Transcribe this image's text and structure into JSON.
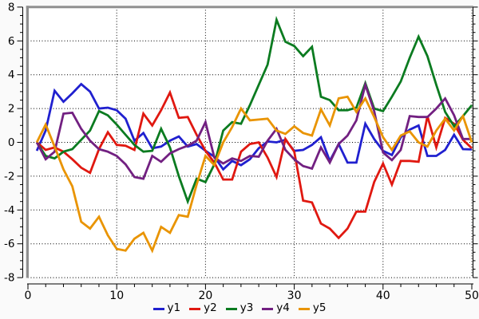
{
  "chart_data": {
    "type": "line",
    "title": "",
    "xlabel": "",
    "ylabel": "",
    "xlim": [
      0,
      50
    ],
    "ylim": [
      -8,
      8
    ],
    "grid": true,
    "grid_style": "dotted",
    "legend_position": "bottom-center",
    "x_major_ticks": [
      0,
      10,
      20,
      30,
      40,
      50
    ],
    "x_tick_labels": [
      "0",
      "10",
      "20",
      "30",
      "40",
      "50"
    ],
    "x_minor_step": 2,
    "y_major_ticks": [
      -8,
      -6,
      -4,
      -2,
      0,
      2,
      4,
      6,
      8
    ],
    "y_tick_labels": [
      "-8",
      "-6",
      "-4",
      "-2",
      "0",
      "2",
      "4",
      "6",
      "8"
    ],
    "y_minor_step": 0.5,
    "x": [
      1,
      2,
      3,
      4,
      5,
      6,
      7,
      8,
      9,
      10,
      11,
      12,
      13,
      14,
      15,
      16,
      17,
      18,
      19,
      20,
      21,
      22,
      23,
      24,
      25,
      26,
      27,
      28,
      29,
      30,
      31,
      32,
      33,
      34,
      35,
      36,
      37,
      38,
      39,
      40,
      41,
      42,
      43,
      44,
      45,
      46,
      47,
      48,
      49,
      50
    ],
    "series": [
      {
        "name": "y1",
        "color": "#2020cf",
        "values": [
          -0.5,
          0.7,
          3.05,
          2.4,
          2.9,
          3.45,
          3.0,
          2.0,
          2.05,
          1.9,
          1.4,
          0.1,
          0.55,
          -0.35,
          -0.25,
          0.1,
          0.35,
          -0.25,
          -0.1,
          -0.5,
          -0.85,
          -1.6,
          -1.1,
          -1.35,
          -1.0,
          -0.35,
          0.05,
          0.0,
          0.15,
          -0.5,
          -0.45,
          -0.15,
          0.3,
          -1.1,
          -0.1,
          -1.2,
          -1.2,
          1.1,
          0.2,
          -0.5,
          -0.75,
          0.3,
          0.75,
          1.0,
          -0.8,
          -0.8,
          -0.45,
          0.45,
          -0.4,
          -0.42
        ]
      },
      {
        "name": "y2",
        "color": "#e01810",
        "values": [
          0.0,
          -0.45,
          -0.3,
          -0.55,
          -1.0,
          -1.5,
          -1.8,
          -0.4,
          0.6,
          -0.15,
          -0.2,
          -0.45,
          1.7,
          1.0,
          1.9,
          2.95,
          1.45,
          1.5,
          0.45,
          -0.5,
          -1.2,
          -2.2,
          -2.2,
          -0.55,
          -0.1,
          0.0,
          -0.9,
          -2.05,
          0.2,
          -0.55,
          -3.45,
          -3.55,
          -4.8,
          -5.1,
          -5.65,
          -5.1,
          -4.1,
          -4.1,
          -2.35,
          -1.25,
          -2.5,
          -1.1,
          -1.1,
          -1.15,
          1.55,
          -0.3,
          1.45,
          1.1,
          0.15,
          -0.35
        ]
      },
      {
        "name": "y3",
        "color": "#0b7b20",
        "values": [
          0.0,
          -0.8,
          -0.95,
          -0.55,
          -0.4,
          0.15,
          0.7,
          1.85,
          1.6,
          1.05,
          0.45,
          -0.15,
          -0.55,
          -0.5,
          0.8,
          -0.3,
          -2.0,
          -3.5,
          -2.15,
          -2.35,
          -1.3,
          0.7,
          1.2,
          1.1,
          2.2,
          3.4,
          4.6,
          7.25,
          5.95,
          5.7,
          5.1,
          5.65,
          2.7,
          2.5,
          1.9,
          1.9,
          2.05,
          3.5,
          2.0,
          1.85,
          2.7,
          3.6,
          5.0,
          6.25,
          5.1,
          3.4,
          1.8,
          0.95,
          1.55,
          2.2
        ]
      },
      {
        "name": "y4",
        "color": "#722081",
        "values": [
          0.0,
          -1.0,
          -0.55,
          1.7,
          1.75,
          0.8,
          0.1,
          -0.4,
          -0.55,
          -0.8,
          -1.3,
          -2.05,
          -2.15,
          -0.8,
          -1.15,
          -0.65,
          -0.4,
          -0.2,
          0.1,
          1.2,
          -0.9,
          -1.25,
          -0.95,
          -1.1,
          -0.8,
          -0.85,
          0.1,
          0.8,
          -0.45,
          -1.0,
          -1.4,
          -1.55,
          -0.3,
          -1.2,
          -0.1,
          0.4,
          1.3,
          3.4,
          1.85,
          -0.6,
          -1.05,
          -0.45,
          1.55,
          1.5,
          1.5,
          2.0,
          2.6,
          1.6,
          0.2,
          0.2
        ]
      },
      {
        "name": "y5",
        "color": "#e99402",
        "values": [
          0.0,
          1.05,
          -0.25,
          -1.6,
          -2.6,
          -4.7,
          -5.1,
          -4.4,
          -5.5,
          -6.3,
          -6.4,
          -5.7,
          -5.35,
          -6.4,
          -5.0,
          -5.35,
          -4.3,
          -4.4,
          -2.5,
          -0.8,
          -1.35,
          0.0,
          0.9,
          2.0,
          1.3,
          1.35,
          1.4,
          0.7,
          0.5,
          0.95,
          0.55,
          0.4,
          1.95,
          1.0,
          2.6,
          2.7,
          1.8,
          2.6,
          1.5,
          0.3,
          -0.45,
          0.4,
          0.65,
          0.0,
          -0.25,
          0.7,
          1.4,
          0.7,
          1.55,
          0.0
        ]
      }
    ]
  },
  "legend": {
    "items": [
      {
        "label": "y1",
        "color": "#2020cf"
      },
      {
        "label": "y2",
        "color": "#e01810"
      },
      {
        "label": "y3",
        "color": "#0b7b20"
      },
      {
        "label": "y4",
        "color": "#722081"
      },
      {
        "label": "y5",
        "color": "#e99402"
      }
    ]
  },
  "style": {
    "plot_background": "#ffffff",
    "border_color": "#8f8f8f",
    "axis_color": "#000000",
    "tick_label_color": "#000000",
    "line_width": 2.8
  }
}
